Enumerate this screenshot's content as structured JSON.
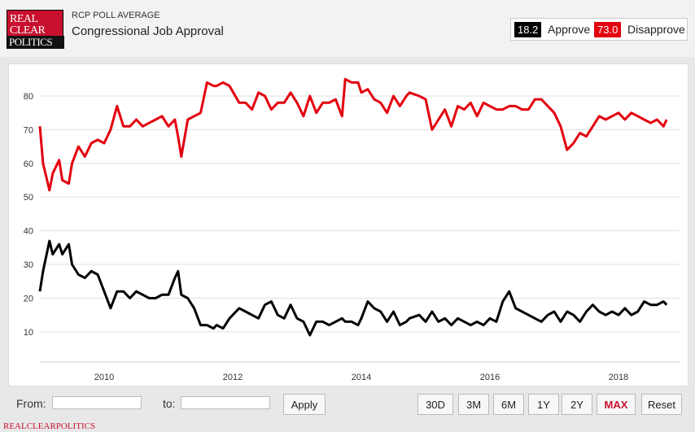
{
  "header": {
    "logo_lines": [
      "REAL",
      "CLEAR",
      "POLITICS"
    ],
    "subtitle": "RCP POLL AVERAGE",
    "title": "Congressional Job Approval"
  },
  "legend": {
    "approve_value": "18.2",
    "approve_label": "Approve",
    "approve_color": "#000000",
    "disapprove_value": "73.0",
    "disapprove_label": "Disapprove",
    "disapprove_color": "#e3000f"
  },
  "controls": {
    "from_label": "From:",
    "to_label": "to:",
    "apply_label": "Apply",
    "ranges": [
      "30D",
      "3M",
      "6M",
      "1Y",
      "2Y",
      "MAX",
      "Reset"
    ],
    "active_range": "MAX"
  },
  "footer": {
    "text": "REALCLEARPOLITICS"
  },
  "chart_data": {
    "type": "line",
    "title": "",
    "xlabel": "",
    "ylabel": "",
    "x_ticks": [
      2010,
      2012,
      2014,
      2016,
      2018
    ],
    "y_ticks": [
      10,
      20,
      30,
      40,
      50,
      60,
      70,
      80
    ],
    "xlim": [
      2009.0,
      2018.95
    ],
    "ylim": [
      2,
      87
    ],
    "grid": true,
    "legend_position": "top-right",
    "series": [
      {
        "name": "Disapprove",
        "color": "#e3000f",
        "x": [
          2009.0,
          2009.05,
          2009.15,
          2009.2,
          2009.3,
          2009.35,
          2009.45,
          2009.5,
          2009.6,
          2009.7,
          2009.8,
          2009.9,
          2010.0,
          2010.1,
          2010.2,
          2010.3,
          2010.4,
          2010.5,
          2010.6,
          2010.7,
          2010.8,
          2010.9,
          2011.0,
          2011.1,
          2011.15,
          2011.2,
          2011.3,
          2011.4,
          2011.5,
          2011.6,
          2011.7,
          2011.75,
          2011.85,
          2011.95,
          2012.1,
          2012.2,
          2012.3,
          2012.4,
          2012.5,
          2012.6,
          2012.7,
          2012.8,
          2012.9,
          2013.0,
          2013.1,
          2013.2,
          2013.3,
          2013.4,
          2013.5,
          2013.6,
          2013.7,
          2013.75,
          2013.85,
          2013.95,
          2014.0,
          2014.1,
          2014.2,
          2014.3,
          2014.4,
          2014.5,
          2014.6,
          2014.7,
          2014.75,
          2014.9,
          2015.0,
          2015.1,
          2015.2,
          2015.3,
          2015.4,
          2015.5,
          2015.6,
          2015.7,
          2015.8,
          2015.9,
          2016.0,
          2016.1,
          2016.2,
          2016.3,
          2016.4,
          2016.5,
          2016.6,
          2016.7,
          2016.8,
          2016.9,
          2017.0,
          2017.1,
          2017.2,
          2017.3,
          2017.4,
          2017.5,
          2017.6,
          2017.7,
          2017.8,
          2017.9,
          2018.0,
          2018.1,
          2018.2,
          2018.3,
          2018.4,
          2018.5,
          2018.6,
          2018.7,
          2018.75
        ],
        "values": [
          71,
          60,
          52,
          57,
          61,
          55,
          54,
          60,
          65,
          62,
          66,
          67,
          66,
          70,
          77,
          71,
          71,
          73,
          71,
          72,
          73,
          74,
          71,
          73,
          68,
          62,
          73,
          74,
          75,
          84,
          83,
          83,
          84,
          83,
          78,
          78,
          76,
          81,
          80,
          76,
          78,
          78,
          81,
          78,
          74,
          80,
          75,
          78,
          78,
          79,
          74,
          85,
          84,
          84,
          81,
          82,
          79,
          78,
          75,
          80,
          77,
          80,
          81,
          80,
          79,
          70,
          73,
          76,
          71,
          77,
          76,
          78,
          74,
          78,
          77,
          76,
          76,
          77,
          77,
          76,
          76,
          79,
          79,
          77,
          75,
          71,
          64,
          66,
          69,
          68,
          71,
          74,
          73,
          74,
          75,
          73,
          75,
          74,
          73,
          72,
          73,
          71,
          73
        ]
      },
      {
        "name": "Approve",
        "color": "#000000",
        "x": [
          2009.0,
          2009.05,
          2009.15,
          2009.2,
          2009.3,
          2009.35,
          2009.45,
          2009.5,
          2009.6,
          2009.7,
          2009.8,
          2009.9,
          2010.0,
          2010.1,
          2010.2,
          2010.3,
          2010.4,
          2010.5,
          2010.6,
          2010.7,
          2010.8,
          2010.9,
          2011.0,
          2011.1,
          2011.15,
          2011.2,
          2011.3,
          2011.4,
          2011.5,
          2011.6,
          2011.7,
          2011.75,
          2011.85,
          2011.95,
          2012.1,
          2012.2,
          2012.3,
          2012.4,
          2012.5,
          2012.6,
          2012.7,
          2012.8,
          2012.9,
          2013.0,
          2013.1,
          2013.2,
          2013.3,
          2013.4,
          2013.5,
          2013.6,
          2013.7,
          2013.75,
          2013.85,
          2013.95,
          2014.0,
          2014.1,
          2014.2,
          2014.3,
          2014.4,
          2014.5,
          2014.6,
          2014.7,
          2014.75,
          2014.9,
          2015.0,
          2015.1,
          2015.2,
          2015.3,
          2015.4,
          2015.5,
          2015.6,
          2015.7,
          2015.8,
          2015.9,
          2016.0,
          2016.1,
          2016.2,
          2016.3,
          2016.4,
          2016.5,
          2016.6,
          2016.7,
          2016.8,
          2016.9,
          2017.0,
          2017.1,
          2017.2,
          2017.3,
          2017.4,
          2017.5,
          2017.6,
          2017.7,
          2017.8,
          2017.9,
          2018.0,
          2018.1,
          2018.2,
          2018.3,
          2018.4,
          2018.5,
          2018.6,
          2018.7,
          2018.75
        ],
        "values": [
          22,
          28,
          37,
          33,
          36,
          33,
          36,
          30,
          27,
          26,
          28,
          27,
          22,
          17,
          22,
          22,
          20,
          22,
          21,
          20,
          20,
          21,
          21,
          26,
          28,
          21,
          20,
          17,
          12,
          12,
          11,
          12,
          11,
          14,
          17,
          16,
          15,
          14,
          18,
          19,
          15,
          14,
          18,
          14,
          13,
          9,
          13,
          13,
          12,
          13,
          14,
          13,
          13,
          12,
          14,
          19,
          17,
          16,
          13,
          16,
          12,
          13,
          14,
          15,
          13,
          16,
          13,
          14,
          12,
          14,
          13,
          12,
          13,
          12,
          14,
          13,
          19,
          22,
          17,
          16,
          15,
          14,
          13,
          15,
          16,
          13,
          16,
          15,
          13,
          16,
          18,
          16,
          15,
          16,
          15,
          17,
          15,
          16,
          19,
          18,
          18,
          19,
          18
        ]
      }
    ]
  }
}
